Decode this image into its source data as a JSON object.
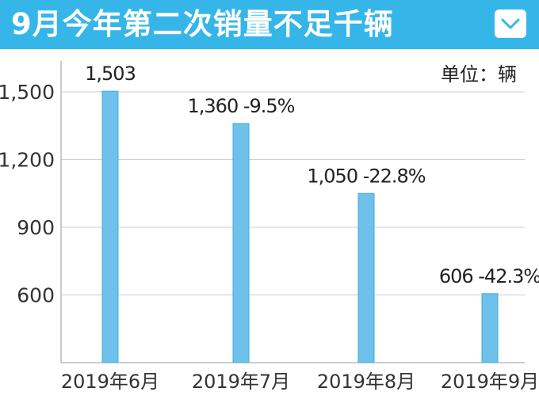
{
  "header": {
    "title": "9月今年第二次销量不足千辆",
    "dropdown_icon": "chevron-down-icon",
    "background_color": "#36b6e8"
  },
  "chart_data": {
    "type": "bar",
    "unit_label": "单位：辆",
    "categories": [
      "2019年6月",
      "2019年7月",
      "2019年8月",
      "2019年9月"
    ],
    "values": [
      1503,
      1360,
      1050,
      606
    ],
    "data_labels": [
      "1,503",
      "1,360 -9.5%",
      "1,050 -22.8%",
      "606 -42.3%"
    ],
    "y_ticks": [
      600,
      900,
      1200,
      1500
    ],
    "y_tick_labels": [
      "600",
      "900",
      "1,200",
      "1,500"
    ],
    "ylim": [
      300,
      1650
    ],
    "grid": true,
    "bar_color": "#6ec1ea",
    "bar_edge_color": "#4aa8d8",
    "grid_color": "#cfcfcf"
  }
}
